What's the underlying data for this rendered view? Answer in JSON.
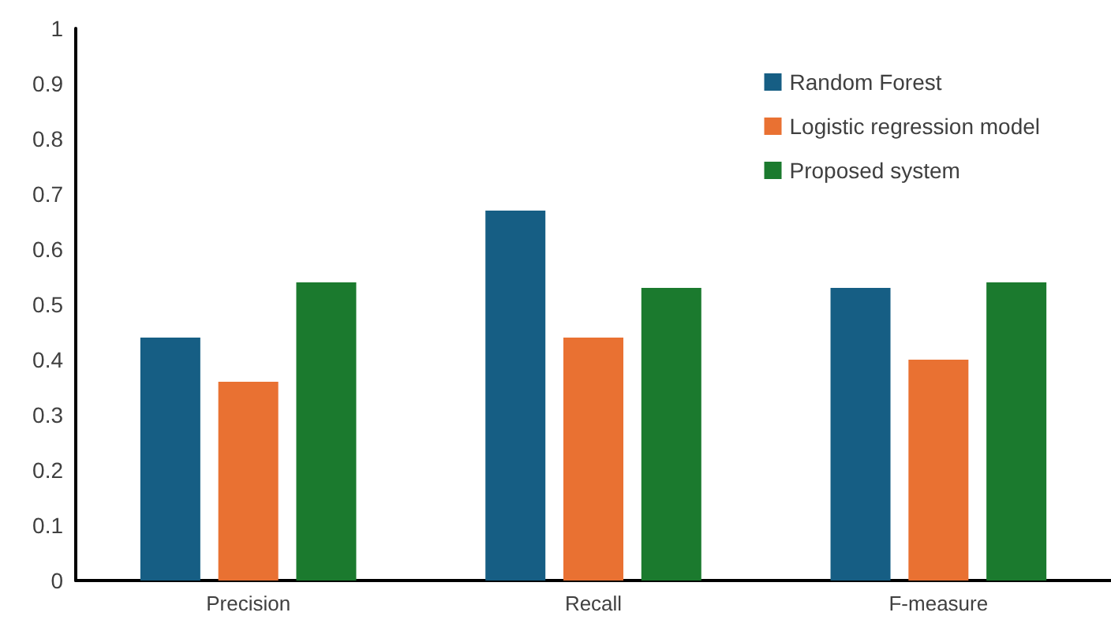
{
  "chart_data": {
    "type": "bar",
    "categories": [
      "Precision",
      "Recall",
      "F-measure"
    ],
    "series": [
      {
        "name": "Random Forest",
        "color": "#165e84",
        "values": [
          0.44,
          0.67,
          0.53
        ]
      },
      {
        "name": "Logistic regression model",
        "color": "#e97132",
        "values": [
          0.36,
          0.44,
          0.4
        ]
      },
      {
        "name": "Proposed system",
        "color": "#1b7a2e",
        "values": [
          0.54,
          0.53,
          0.54
        ]
      }
    ],
    "ylim": [
      0,
      1
    ],
    "yticks": [
      0,
      0.1,
      0.2,
      0.3,
      0.4,
      0.5,
      0.6,
      0.7,
      0.8,
      0.9,
      1
    ],
    "grid": false,
    "legend": "top right"
  }
}
